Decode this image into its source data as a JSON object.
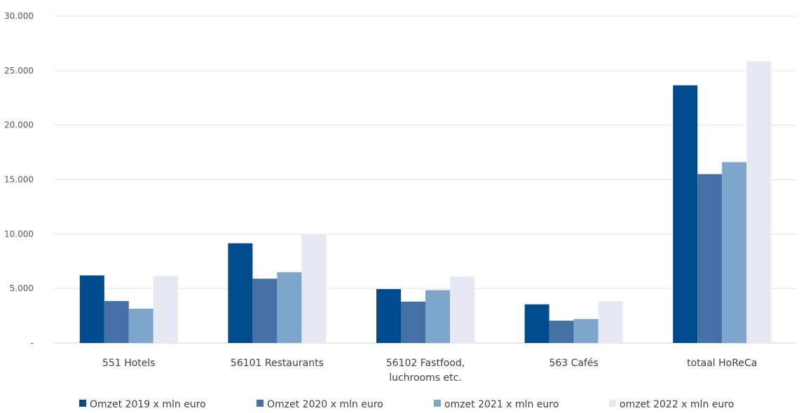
{
  "chart_data": {
    "type": "bar",
    "categories": [
      [
        "551 Hotels"
      ],
      [
        "56101 Restaurants"
      ],
      [
        "56102 Fastfood,",
        "luchrooms etc."
      ],
      [
        "563 Cafés"
      ],
      [
        "totaal HoReCa"
      ]
    ],
    "series": [
      {
        "name": "Omzet 2019 x mln euro",
        "color": "#004b8d",
        "values": [
          6200,
          9150,
          4950,
          3550,
          23650
        ]
      },
      {
        "name": "Omzet 2020 x mln euro",
        "color": "#4470a5",
        "values": [
          3850,
          5900,
          3800,
          2050,
          15500
        ]
      },
      {
        "name": "omzet 2021 x mln euro",
        "color": "#7ea5ca",
        "values": [
          3150,
          6500,
          4850,
          2200,
          16600
        ]
      },
      {
        "name": "omzet 2022 x mln euro",
        "color": "#e6e9f4",
        "values": [
          6150,
          9950,
          6100,
          3850,
          25850
        ]
      }
    ],
    "y_ticks": [
      {
        "value": 0,
        "label": "-"
      },
      {
        "value": 5000,
        "label": "5.000"
      },
      {
        "value": 10000,
        "label": "10.000"
      },
      {
        "value": 15000,
        "label": "15.000"
      },
      {
        "value": 20000,
        "label": "20.000"
      },
      {
        "value": 25000,
        "label": "25.000"
      },
      {
        "value": 30000,
        "label": "30.000"
      }
    ],
    "ylim": [
      0,
      30000
    ],
    "grid": true,
    "legend_position": "bottom"
  }
}
